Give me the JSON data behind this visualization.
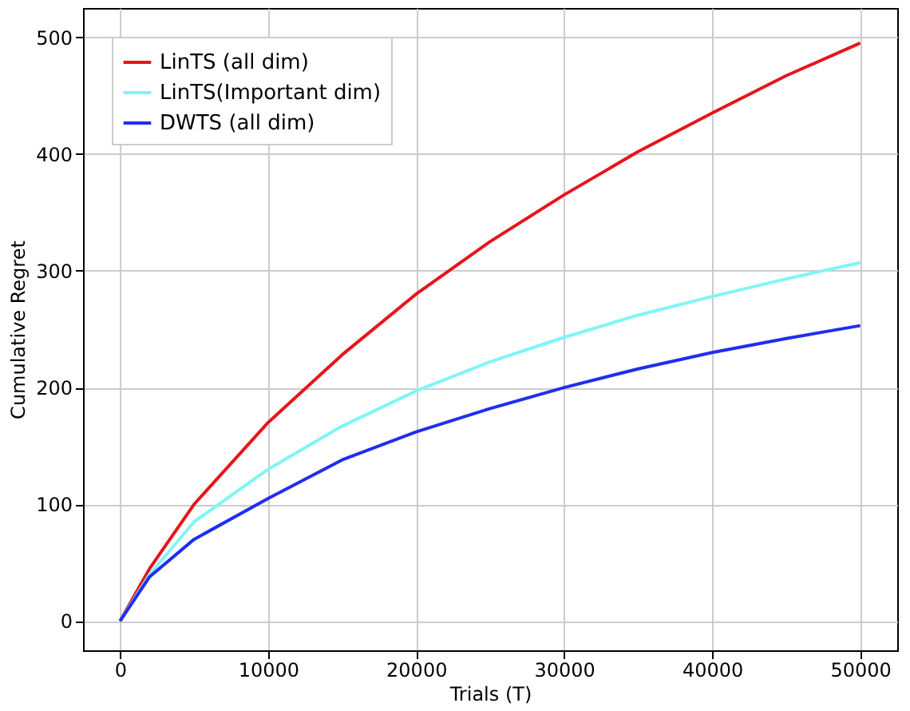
{
  "chart_data": {
    "type": "line",
    "xlabel": "Trials (T)",
    "ylabel": "Cumulative Regret",
    "x": [
      0,
      2000,
      5000,
      10000,
      15000,
      20000,
      25000,
      30000,
      35000,
      40000,
      45000,
      50000
    ],
    "series": [
      {
        "name": "LinTS (all dim)",
        "color": "#e8141c",
        "values": [
          0,
          45,
          100,
          170,
          228,
          280,
          325,
          365,
          402,
          435,
          467,
          495
        ]
      },
      {
        "name": "LinTS(Important dim)",
        "color": "#80f5f5",
        "values": [
          0,
          40,
          85,
          130,
          167,
          197,
          222,
          243,
          262,
          278,
          293,
          307
        ]
      },
      {
        "name": "DWTS (all dim)",
        "color": "#1f2ef0",
        "values": [
          0,
          38,
          70,
          105,
          138,
          162,
          182,
          200,
          216,
          230,
          242,
          253
        ]
      }
    ],
    "xlim": [
      -2500,
      52500
    ],
    "ylim": [
      -25,
      525
    ],
    "xticks": [
      0,
      10000,
      20000,
      30000,
      40000,
      50000
    ],
    "yticks": [
      0,
      100,
      200,
      300,
      400,
      500
    ],
    "grid": true,
    "legend": "top left",
    "marker": "none",
    "line_style": "solid"
  }
}
